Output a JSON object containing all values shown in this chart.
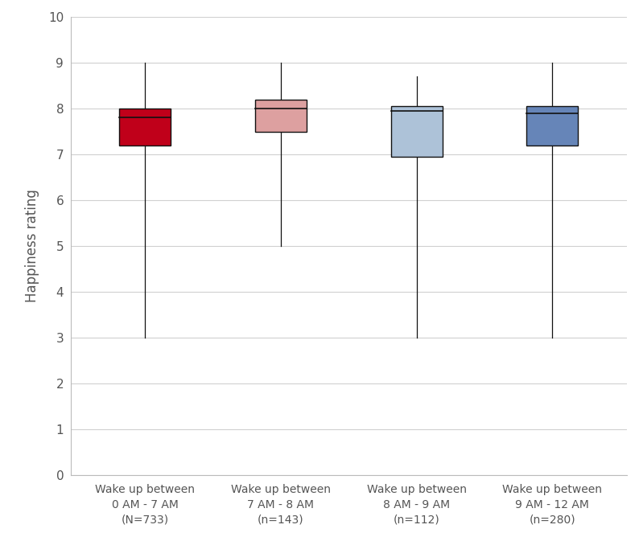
{
  "boxes": [
    {
      "label": "Wake up between\n0 AM - 7 AM\n(N=733)",
      "whisker_low": 3.0,
      "q1": 7.2,
      "median": 7.8,
      "q3": 8.0,
      "whisker_high": 9.0,
      "face_color": "#c0001a",
      "edge_color": "#111111"
    },
    {
      "label": "Wake up between\n7 AM - 8 AM\n(n=143)",
      "whisker_low": 5.0,
      "q1": 7.5,
      "median": 8.0,
      "q3": 8.2,
      "whisker_high": 9.0,
      "face_color": "#dda0a0",
      "edge_color": "#111111"
    },
    {
      "label": "Wake up between\n8 AM - 9 AM\n(n=112)",
      "whisker_low": 3.0,
      "q1": 6.95,
      "median": 7.95,
      "q3": 8.05,
      "whisker_high": 8.7,
      "face_color": "#adc2d8",
      "edge_color": "#111111"
    },
    {
      "label": "Wake up between\n9 AM - 12 AM\n(n=280)",
      "whisker_low": 3.0,
      "q1": 7.2,
      "median": 7.9,
      "q3": 8.05,
      "whisker_high": 9.0,
      "face_color": "#6685b8",
      "edge_color": "#111111"
    }
  ],
  "ylabel": "Happiness rating",
  "ylim": [
    0,
    10
  ],
  "yticks": [
    0,
    1,
    2,
    3,
    4,
    5,
    6,
    7,
    8,
    9,
    10
  ],
  "background_color": "#ffffff",
  "grid_color": "#d0d0d0",
  "box_width": 0.38,
  "positions": [
    1,
    2,
    3,
    4
  ],
  "ylabel_fontsize": 12,
  "tick_fontsize": 11,
  "xlabel_fontsize": 10,
  "text_color": "#555555"
}
